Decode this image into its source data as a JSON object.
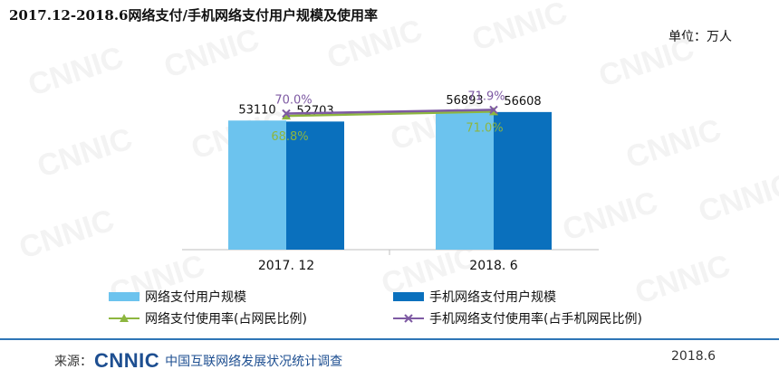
{
  "title": "2017.12-2018.6网络支付/手机网络支付用户规模及使用率",
  "unit": "单位：万人",
  "chart_data": {
    "type": "bar",
    "categories": [
      "2017. 12",
      "2018. 6"
    ],
    "series": [
      {
        "name": "网络支付用户规模",
        "type": "bar",
        "values": [
          53110,
          56893
        ],
        "color": "#6cc3ee"
      },
      {
        "name": "手机网络支付用户规模",
        "type": "bar",
        "values": [
          52703,
          56608
        ],
        "color": "#0a70bd"
      },
      {
        "name": "网络支付使用率(占网民比例)",
        "type": "line",
        "values": [
          68.8,
          71.0
        ],
        "labels": [
          "68.8%",
          "71.0%"
        ],
        "color": "#8db63f",
        "marker": "triangle"
      },
      {
        "name": "手机网络支付使用率(占手机网民比例)",
        "type": "line",
        "values": [
          70.0,
          71.9
        ],
        "labels": [
          "70.0%",
          "71.9%"
        ],
        "color": "#7e5aa3",
        "marker": "x"
      }
    ],
    "bar_ylim": [
      0,
      80000
    ],
    "line_ylim": [
      0,
      100
    ],
    "grid": false,
    "legend": "bottom"
  },
  "footer": {
    "source_label": "来源：",
    "logo_text": "CNNIC",
    "org": "中国互联网络发展状况统计调查",
    "date": "2018.6"
  },
  "watermark": "CNNIC"
}
